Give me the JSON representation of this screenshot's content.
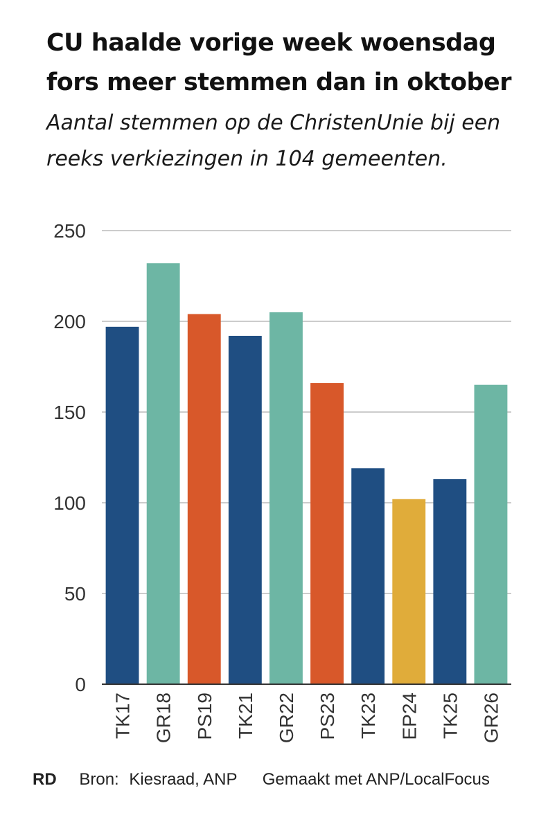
{
  "title_lines": [
    "CU haalde vorige week woensdag",
    "fors meer stemmen dan in oktober"
  ],
  "subtitle_lines": [
    "Aantal stemmen op de ChristenUnie bij een",
    "reeks verkiezingen in 104 gemeenten."
  ],
  "footer": {
    "logo": "RD",
    "source_label": "Bron:",
    "source": "Kiesraad, ANP",
    "made_with": "Gemaakt met ANP/LocalFocus"
  },
  "colors": {
    "tk": "#1f4e82",
    "gr": "#6db6a4",
    "ps": "#d8582a",
    "ep": "#e0ac3a",
    "grid": "#cccccc",
    "axis": "#333333"
  },
  "chart_data": {
    "type": "bar",
    "title": "",
    "xlabel": "",
    "ylabel": "",
    "ylim": [
      0,
      250
    ],
    "yticks": [
      0,
      50,
      100,
      150,
      200,
      250
    ],
    "grid": true,
    "categories": [
      "TK17",
      "GR18",
      "PS19",
      "TK21",
      "GR22",
      "PS23",
      "TK23",
      "EP24",
      "TK25",
      "GR26"
    ],
    "values": [
      197,
      232,
      204,
      192,
      205,
      166,
      119,
      102,
      113,
      165
    ],
    "bar_colors": [
      "#1f4e82",
      "#6db6a4",
      "#d8582a",
      "#1f4e82",
      "#6db6a4",
      "#d8582a",
      "#1f4e82",
      "#e0ac3a",
      "#1f4e82",
      "#6db6a4"
    ]
  }
}
